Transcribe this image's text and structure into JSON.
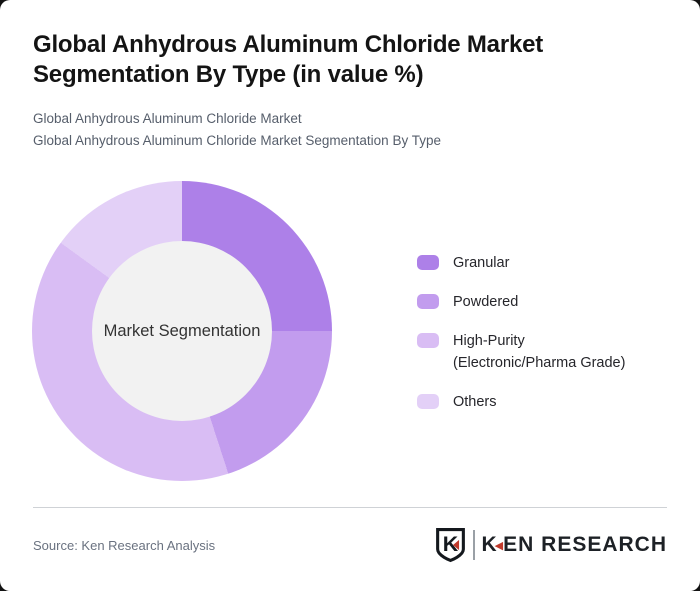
{
  "header": {
    "title_lines": [
      "Global Anhydrous Aluminum Chloride Market",
      "Segmentation By Type (in value %)"
    ],
    "subtitle_line1": "Global Anhydrous Aluminum Chloride Market",
    "subtitle_line2": "Global Anhydrous Aluminum Chloride Market Segmentation By Type"
  },
  "chart_data": {
    "type": "pie",
    "variant": "donut",
    "title": "Global Anhydrous Aluminum Chloride Market Segmentation By Type (in value %)",
    "unit": "value %",
    "center_label": "Market Segmentation",
    "center_fill": "#f2f2f2",
    "legend_position": "right",
    "start_angle_deg": 0,
    "segments": [
      {
        "label": "Granular",
        "sublabel": "",
        "value": 25,
        "color": "#ad80e8"
      },
      {
        "label": "Powdered",
        "sublabel": "",
        "value": 20,
        "color": "#c29cee"
      },
      {
        "label": "High-Purity",
        "sublabel": "(Electronic/Pharma Grade)",
        "value": 40,
        "color": "#d9bdf4"
      },
      {
        "label": "Others",
        "sublabel": "",
        "value": 15,
        "color": "#e3d0f7"
      }
    ]
  },
  "footer": {
    "source": "Source: Ken Research Analysis",
    "logo": {
      "badge_letter": "K",
      "brand": "KEN RESEARCH",
      "accent_color": "#c0392b",
      "ink_color": "#1d2126"
    }
  }
}
